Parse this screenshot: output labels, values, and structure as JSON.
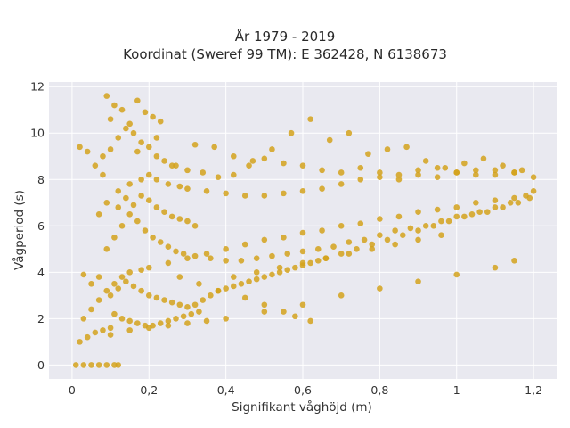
{
  "chart_data": {
    "type": "scatter",
    "title_line1": "År 1979 - 2019",
    "title_line2": "Koordinat (Sweref 99 TM): E 362428, N 6138673",
    "xlabel": "Signifikant våghöjd (m)",
    "ylabel": "Vågperiod (s)",
    "xlim": [
      -0.06,
      1.26
    ],
    "ylim": [
      -0.6,
      12.2
    ],
    "x_ticks": [
      0,
      0.2,
      0.4,
      0.6,
      0.8,
      1,
      1.2
    ],
    "x_tick_labels": [
      "0",
      "0,2",
      "0,4",
      "0,6",
      "0,8",
      "1",
      "1,2"
    ],
    "y_ticks": [
      0,
      2,
      4,
      6,
      8,
      10,
      12
    ],
    "y_tick_labels": [
      "0",
      "2",
      "4",
      "6",
      "8",
      "10",
      "12"
    ],
    "marker_color": "#d4a21c",
    "plot_background": "#e9e9f0",
    "grid": true,
    "x": [
      0.01,
      0.03,
      0.05,
      0.07,
      0.09,
      0.11,
      0.12,
      0.02,
      0.04,
      0.06,
      0.08,
      0.1,
      0.03,
      0.05,
      0.07,
      0.09,
      0.11,
      0.13,
      0.15,
      0.18,
      0.2,
      0.25,
      0.3,
      0.35,
      0.4,
      0.45,
      0.5,
      0.55,
      0.6,
      0.65,
      0.7,
      0.75,
      0.8,
      0.85,
      0.9,
      0.95,
      1.0,
      1.05,
      1.1,
      1.15,
      1.18,
      1.2,
      0.1,
      0.15,
      0.2,
      0.25,
      0.3,
      0.35,
      0.4,
      0.5,
      0.6,
      0.7,
      0.8,
      0.9,
      1.0,
      1.1,
      1.15,
      0.07,
      0.09,
      0.12,
      0.15,
      0.18,
      0.2,
      0.22,
      0.25,
      0.28,
      0.3,
      0.35,
      0.4,
      0.45,
      0.5,
      0.55,
      0.6,
      0.65,
      0.7,
      0.75,
      0.8,
      0.85,
      0.9,
      0.95,
      1.0,
      1.05,
      1.1,
      1.15,
      1.2,
      0.08,
      0.1,
      0.12,
      0.14,
      0.16,
      0.18,
      0.2,
      0.22,
      0.24,
      0.26,
      0.3,
      0.34,
      0.38,
      0.42,
      0.46,
      0.5,
      0.55,
      0.6,
      0.65,
      0.7,
      0.75,
      0.8,
      0.85,
      0.9,
      0.95,
      1.0,
      1.05,
      1.1,
      1.15,
      0.09,
      0.11,
      0.13,
      0.15,
      0.17,
      0.19,
      0.21,
      0.23,
      0.25,
      0.27,
      0.29,
      0.32,
      0.36,
      0.4,
      0.44,
      0.48,
      0.52,
      0.56,
      0.6,
      0.64,
      0.68,
      0.72,
      0.76,
      0.8,
      0.84,
      0.88,
      0.92,
      0.96,
      1.0,
      1.04,
      1.08,
      1.12,
      1.16,
      1.19,
      0.1,
      0.12,
      0.14,
      0.16,
      0.18,
      0.2,
      0.22,
      0.24,
      0.26,
      0.28,
      0.3,
      0.32,
      0.34,
      0.36,
      0.38,
      0.4,
      0.42,
      0.44,
      0.46,
      0.48,
      0.5,
      0.52,
      0.54,
      0.56,
      0.58,
      0.6,
      0.62,
      0.64,
      0.66,
      0.7,
      0.74,
      0.78,
      0.82,
      0.86,
      0.9,
      0.94,
      0.98,
      1.02,
      1.06,
      1.1,
      1.14,
      0.11,
      0.13,
      0.15,
      0.17,
      0.19,
      0.21,
      0.23,
      0.25,
      0.27,
      0.29,
      0.31,
      0.33,
      0.12,
      0.14,
      0.16,
      0.18,
      0.2,
      0.22,
      0.24,
      0.26,
      0.28,
      0.3,
      0.32,
      0.09,
      0.1,
      0.11,
      0.13,
      0.15,
      0.17,
      0.19,
      0.21,
      0.23,
      0.17,
      0.22,
      0.27,
      0.32,
      0.37,
      0.42,
      0.47,
      0.52,
      0.57,
      0.62,
      0.67,
      0.72,
      0.77,
      0.82,
      0.87,
      0.92,
      0.97,
      1.02,
      1.07,
      1.12,
      1.17,
      0.42,
      0.48,
      0.54,
      0.6,
      0.66,
      0.72,
      0.78,
      0.84,
      0.9,
      0.96,
      0.62,
      0.58,
      0.55,
      0.5,
      0.45,
      0.38,
      0.33,
      0.28,
      0.03,
      0.05,
      0.07,
      0.02,
      0.04,
      0.06,
      0.08
    ],
    "y": [
      0,
      0,
      0,
      0,
      0,
      0,
      0,
      1.0,
      1.2,
      1.4,
      1.5,
      1.6,
      2.0,
      2.4,
      2.8,
      3.2,
      3.5,
      3.8,
      4.0,
      4.1,
      4.2,
      4.4,
      4.6,
      4.8,
      5.0,
      5.2,
      5.4,
      5.5,
      5.7,
      5.8,
      6.0,
      6.1,
      6.3,
      6.4,
      6.6,
      6.7,
      6.8,
      7.0,
      7.1,
      7.2,
      7.3,
      7.5,
      1.3,
      1.5,
      1.6,
      1.7,
      1.8,
      1.9,
      2.0,
      2.3,
      2.6,
      3.0,
      3.3,
      3.6,
      3.9,
      4.2,
      4.5,
      6.5,
      7.0,
      7.5,
      7.8,
      8.0,
      8.2,
      8.0,
      7.8,
      7.7,
      7.6,
      7.5,
      7.4,
      7.3,
      7.3,
      7.4,
      7.5,
      7.6,
      7.8,
      8.0,
      8.1,
      8.0,
      8.2,
      8.1,
      8.3,
      8.2,
      8.4,
      8.3,
      8.1,
      9.0,
      9.3,
      9.8,
      10.2,
      10.0,
      9.6,
      9.4,
      9.0,
      8.8,
      8.6,
      8.4,
      8.3,
      8.1,
      8.2,
      8.6,
      8.9,
      8.7,
      8.6,
      8.4,
      8.3,
      8.5,
      8.3,
      8.2,
      8.4,
      8.5,
      8.3,
      8.4,
      8.2,
      8.3,
      5.0,
      5.5,
      6.0,
      6.5,
      6.2,
      5.8,
      5.5,
      5.3,
      5.1,
      4.9,
      4.8,
      4.7,
      4.6,
      4.5,
      4.5,
      4.6,
      4.7,
      4.8,
      4.9,
      5.0,
      5.1,
      5.3,
      5.4,
      5.6,
      5.8,
      5.9,
      6.0,
      6.2,
      6.4,
      6.5,
      6.6,
      6.8,
      7.0,
      7.2,
      3.0,
      3.3,
      3.6,
      3.4,
      3.2,
      3.0,
      2.9,
      2.8,
      2.7,
      2.6,
      2.5,
      2.6,
      2.8,
      3.0,
      3.2,
      3.3,
      3.4,
      3.5,
      3.6,
      3.7,
      3.8,
      3.9,
      4.0,
      4.1,
      4.2,
      4.3,
      4.4,
      4.5,
      4.6,
      4.8,
      5.0,
      5.2,
      5.4,
      5.6,
      5.8,
      6.0,
      6.2,
      6.4,
      6.6,
      6.8,
      7.0,
      2.2,
      2.0,
      1.9,
      1.8,
      1.7,
      1.7,
      1.8,
      1.9,
      2.0,
      2.1,
      2.2,
      2.3,
      6.8,
      7.2,
      6.9,
      7.3,
      7.1,
      6.8,
      6.6,
      6.4,
      6.3,
      6.2,
      6.0,
      11.6,
      10.6,
      11.2,
      11.0,
      10.4,
      11.4,
      10.9,
      10.7,
      10.5,
      9.2,
      9.8,
      8.6,
      9.5,
      9.4,
      9.0,
      8.8,
      9.3,
      10.0,
      10.6,
      9.7,
      10.0,
      9.1,
      9.3,
      9.4,
      8.8,
      8.5,
      8.7,
      8.9,
      8.6,
      8.4,
      3.8,
      4.0,
      4.2,
      4.4,
      4.6,
      4.8,
      5.0,
      5.2,
      5.4,
      5.6,
      1.9,
      2.1,
      2.3,
      2.6,
      2.9,
      3.2,
      3.5,
      3.8,
      3.9,
      3.5,
      3.8,
      9.4,
      9.2,
      8.6,
      8.2
    ]
  }
}
